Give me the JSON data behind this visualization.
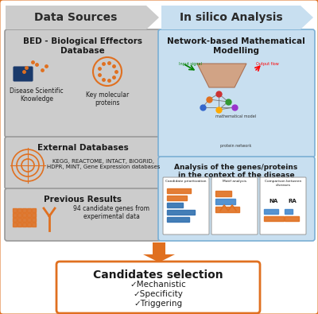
{
  "bg_color": "#ffffff",
  "orange": "#E07020",
  "light_gray": "#CCCCCC",
  "light_blue": "#C8DFF0",
  "blue_border": "#7BAFD4",
  "gray_border": "#999999",
  "header_left": "Data Sources",
  "header_right": "In silico Analysis",
  "box1_title": "BED - Biological Effectors\nDatabase",
  "box1_label1": "Disease Scientific\nKnowledge",
  "box1_label2": "Key molecular\nproteins",
  "box2_title": "External Databases",
  "box2_text": "KEGG, REACTOME, INTACT, BIOGRID,\nHDPR, MINT, Gene Expression databases",
  "box3_title": "Previous Results",
  "box3_text": "94 candidate genes from\nexperimental data",
  "box4_title": "Network-based Mathematical\nModelling",
  "box5_title": "Analysis of the genes/proteins\nin the context of the disease",
  "bottom_title": "Candidates selection",
  "bottom_items": [
    "✓Mechanistic",
    "✓Specificity",
    "✓Triggering"
  ],
  "sub_labels": [
    "Candidate prioritization",
    "Motif analysis",
    "Comparison between\ndiseases"
  ]
}
